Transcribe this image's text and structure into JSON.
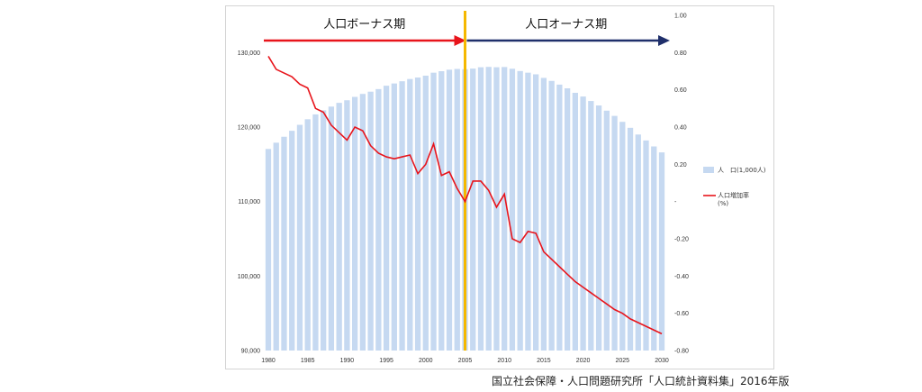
{
  "source": "国立社会保障・人口問題研究所「人口統計資料集」2016年版",
  "colors": {
    "bar": "#c6d9f1",
    "line": "#e8141b",
    "divider": "#f5b800",
    "arrow_left": "#e8141b",
    "arrow_right": "#1f2f6b"
  },
  "chart_data": {
    "type": "bar+line",
    "x": [
      1980,
      1981,
      1982,
      1983,
      1984,
      1985,
      1986,
      1987,
      1988,
      1989,
      1990,
      1991,
      1992,
      1993,
      1994,
      1995,
      1996,
      1997,
      1998,
      1999,
      2000,
      2001,
      2002,
      2003,
      2004,
      2005,
      2006,
      2007,
      2008,
      2009,
      2010,
      2011,
      2012,
      2013,
      2014,
      2015,
      2016,
      2017,
      2018,
      2019,
      2020,
      2021,
      2022,
      2023,
      2024,
      2025,
      2026,
      2027,
      2028,
      2029,
      2030
    ],
    "x_ticks": [
      "1980",
      "1985",
      "1990",
      "1995",
      "2000",
      "2005",
      "2010",
      "2015",
      "2020",
      "2025",
      "2030"
    ],
    "y_left_ticks": [
      "90,000",
      "100,000",
      "110,000",
      "120,000",
      "130,000"
    ],
    "y_right_ticks": [
      "1.00",
      "0.80",
      "0.60",
      "0.40",
      "0.20",
      "-",
      "-0.20",
      "-0.40",
      "-0.60",
      "-0.80"
    ],
    "ylim_left": [
      90000,
      135000
    ],
    "ylim_right": [
      -0.8,
      1.0
    ],
    "period_labels": [
      "人口ボーナス期",
      "人口オーナス期"
    ],
    "series": [
      {
        "name": "人　口(1,000人)",
        "type": "bar",
        "values": [
          117060,
          117900,
          118700,
          119500,
          120300,
          121050,
          121700,
          122250,
          122750,
          123250,
          123600,
          124050,
          124450,
          124750,
          125100,
          125550,
          125850,
          126150,
          126450,
          126650,
          126900,
          127300,
          127500,
          127700,
          127800,
          127770,
          127850,
          128030,
          128080,
          128030,
          128060,
          127830,
          127520,
          127300,
          127080,
          126600,
          126200,
          125700,
          125200,
          124600,
          124100,
          123500,
          122900,
          122200,
          121500,
          120700,
          119900,
          119000,
          118200,
          117400,
          116600
        ]
      },
      {
        "name": "人口増加率\n(%)",
        "type": "line",
        "values": [
          0.78,
          0.71,
          0.69,
          0.67,
          0.63,
          0.61,
          0.5,
          0.48,
          0.41,
          0.37,
          0.33,
          0.4,
          0.38,
          0.3,
          0.26,
          0.24,
          0.23,
          0.24,
          0.25,
          0.15,
          0.2,
          0.31,
          0.14,
          0.16,
          0.07,
          0.0,
          0.11,
          0.11,
          0.06,
          -0.03,
          0.04,
          -0.2,
          -0.22,
          -0.16,
          -0.17,
          -0.27,
          -0.31,
          -0.35,
          -0.39,
          -0.43,
          -0.46,
          -0.49,
          -0.52,
          -0.55,
          -0.58,
          -0.6,
          -0.63,
          -0.65,
          -0.67,
          -0.69,
          -0.71
        ]
      }
    ],
    "legend_position": "right"
  }
}
